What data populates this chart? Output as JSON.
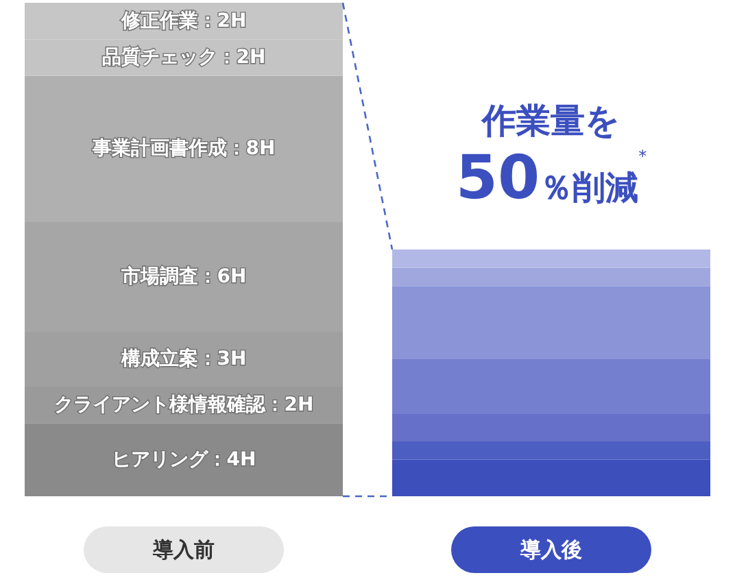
{
  "chart_data": {
    "type": "bar",
    "stacked": true,
    "categories": [
      "導入前",
      "導入後"
    ],
    "annotations": [
      "作業量を",
      "50％削減$^{*}$"
    ],
    "series": [
      {
        "colors": [
          "#8a8a8a",
          "#3d4fbb"
        ],
        "values": [
          4,
          2
        ],
        "value_labels": [
          "ヒアリング：4H",
          null
        ]
      },
      {
        "colors": [
          "#9a9a9a",
          "#4d5ec2"
        ],
        "values": [
          2,
          1
        ],
        "value_labels": [
          "クライアント様情報確認：2H",
          null
        ]
      },
      {
        "colors": [
          "#a0a0a0",
          "#6670c8"
        ],
        "values": [
          3,
          1.5
        ],
        "value_labels": [
          "構成立案：3H",
          null
        ]
      },
      {
        "colors": [
          "#a6a6a6",
          "#7480cf"
        ],
        "values": [
          6,
          3
        ],
        "value_labels": [
          "市場調査：6H",
          null
        ]
      },
      {
        "colors": [
          "#b0b0b0",
          "#8a94d7"
        ],
        "values": [
          8,
          4
        ],
        "value_labels": [
          "事業計画書作成：8H",
          null
        ]
      },
      {
        "colors": [
          "#c4c4c4",
          "#a0a7de"
        ],
        "values": [
          2,
          1
        ],
        "value_labels": [
          "品質チェック：2H",
          null
        ]
      },
      {
        "colors": [
          "#c6c6c6",
          "#b2b8e6"
        ],
        "values": [
          2,
          1
        ],
        "value_labels": [
          "修正作業：2H",
          null
        ]
      }
    ],
    "tick_labels": "x"
  }
}
